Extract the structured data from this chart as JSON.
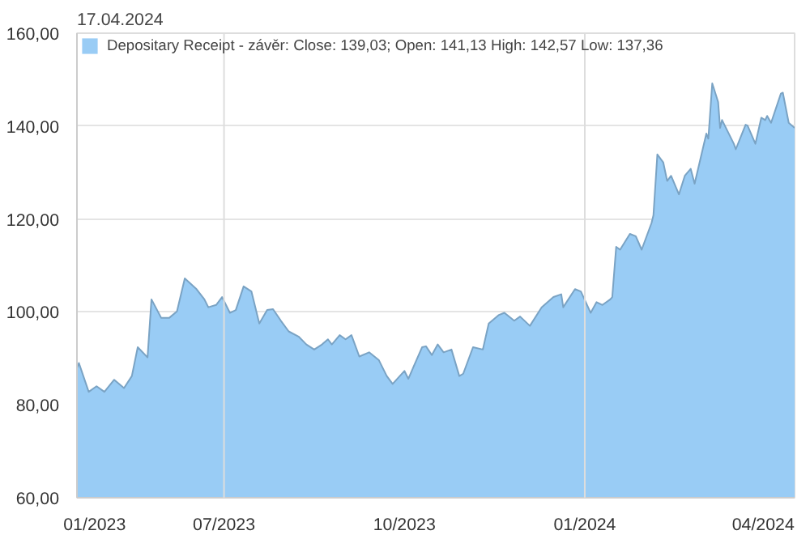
{
  "chart_data": {
    "type": "area",
    "title": "17.04.2024",
    "x": [
      "2023-04-17",
      "2023-04-18",
      "2023-04-23",
      "2023-04-27",
      "2023-05-01",
      "2023-05-06",
      "2023-05-11",
      "2023-05-15",
      "2023-05-18",
      "2023-05-23",
      "2023-05-25",
      "2023-05-30",
      "2023-06-03",
      "2023-06-07",
      "2023-06-11",
      "2023-06-17",
      "2023-06-21",
      "2023-06-23",
      "2023-06-27",
      "2023-06-30",
      "2023-07-04",
      "2023-07-07",
      "2023-07-11",
      "2023-07-15",
      "2023-07-19",
      "2023-07-23",
      "2023-07-26",
      "2023-07-30",
      "2023-08-03",
      "2023-08-08",
      "2023-08-12",
      "2023-08-16",
      "2023-08-20",
      "2023-08-23",
      "2023-08-25",
      "2023-08-29",
      "2023-09-01",
      "2023-09-04",
      "2023-09-08",
      "2023-09-13",
      "2023-09-18",
      "2023-09-22",
      "2023-09-25",
      "2023-10-01",
      "2023-10-03",
      "2023-10-10",
      "2023-10-12",
      "2023-10-15",
      "2023-10-18",
      "2023-10-21",
      "2023-10-25",
      "2023-10-29",
      "2023-10-31",
      "2023-11-05",
      "2023-11-10",
      "2023-11-13",
      "2023-11-18",
      "2023-11-21",
      "2023-11-26",
      "2023-11-29",
      "2023-12-04",
      "2023-12-10",
      "2023-12-16",
      "2023-12-20",
      "2023-12-21",
      "2023-12-27",
      "2023-12-30",
      "2024-01-04",
      "2024-01-07",
      "2024-01-10",
      "2024-01-14",
      "2024-01-15",
      "2024-01-17",
      "2024-01-19",
      "2024-01-24",
      "2024-01-27",
      "2024-01-30",
      "2024-02-04",
      "2024-02-05",
      "2024-02-07",
      "2024-02-10",
      "2024-02-12",
      "2024-02-14",
      "2024-02-18",
      "2024-02-21",
      "2024-02-24",
      "2024-02-26",
      "2024-03-03",
      "2024-03-04",
      "2024-03-06",
      "2024-03-09",
      "2024-03-10",
      "2024-03-11",
      "2024-03-17",
      "2024-03-18",
      "2024-03-23",
      "2024-03-24",
      "2024-03-28",
      "2024-03-31",
      "2024-04-02",
      "2024-04-03",
      "2024-04-05",
      "2024-04-10",
      "2024-04-11",
      "2024-04-14",
      "2024-04-17"
    ],
    "series": [
      {
        "name": "Depositary Receipt - závěr: Close: 139,03; Open: 141,13 High: 142,57 Low: 137,36",
        "color": "#99ccf5",
        "values": [
          87.9,
          89.0,
          82.8,
          84.0,
          82.8,
          85.4,
          83.6,
          86.2,
          92.4,
          90.2,
          102.7,
          98.7,
          98.7,
          100.1,
          107.2,
          104.9,
          102.7,
          101.0,
          101.5,
          103.2,
          99.8,
          100.4,
          105.5,
          104.4,
          97.5,
          100.4,
          100.6,
          98.1,
          95.8,
          94.7,
          93.0,
          91.9,
          93.0,
          94.1,
          93.0,
          95.0,
          94.1,
          95.0,
          90.4,
          91.3,
          89.6,
          86.2,
          84.5,
          87.3,
          85.6,
          92.4,
          92.6,
          90.7,
          93.0,
          91.3,
          91.9,
          86.2,
          86.7,
          92.4,
          91.9,
          97.5,
          99.3,
          99.8,
          98.1,
          99.0,
          97.0,
          101.0,
          103.2,
          103.8,
          101.0,
          104.9,
          104.4,
          99.8,
          102.1,
          101.5,
          102.7,
          103.2,
          114.0,
          113.4,
          116.8,
          116.3,
          113.4,
          119.1,
          120.8,
          133.9,
          132.2,
          128.2,
          129.3,
          125.3,
          129.3,
          130.8,
          127.6,
          138.4,
          137.3,
          149.2,
          145.2,
          139.6,
          141.3,
          136.2,
          135.0,
          140.3,
          140.1,
          136.2,
          141.8,
          141.3,
          142.2,
          140.7,
          147.0,
          147.2,
          140.7,
          139.6
        ]
      }
    ],
    "xlim": [
      "2023-04-17",
      "2024-04-17"
    ],
    "xticks": [
      {
        "value": "2023-04-26",
        "label": "01/2023"
      },
      {
        "value": "2023-07-01",
        "label": "07/2023"
      },
      {
        "value": "2023-10-01",
        "label": "10/2023"
      },
      {
        "value": "2024-01-01",
        "label": "01/2024"
      },
      {
        "value": "2024-04-01",
        "label": "04/2024"
      }
    ],
    "ylim": [
      60,
      160
    ],
    "yticks": [
      {
        "value": 60,
        "label": "60,00"
      },
      {
        "value": 80,
        "label": "80,00"
      },
      {
        "value": 100,
        "label": "100,00"
      },
      {
        "value": 120,
        "label": "120,00"
      },
      {
        "value": 140,
        "label": "140,00"
      },
      {
        "value": 160,
        "label": "160,00"
      }
    ],
    "grid": "y",
    "ref_lines": [
      {
        "axis": "x",
        "value": "2023-07-01",
        "label": null,
        "color": "#dddddd"
      },
      {
        "axis": "x",
        "value": "2024-01-01",
        "label": null,
        "color": "#dddddd"
      }
    ],
    "legend": "top"
  }
}
